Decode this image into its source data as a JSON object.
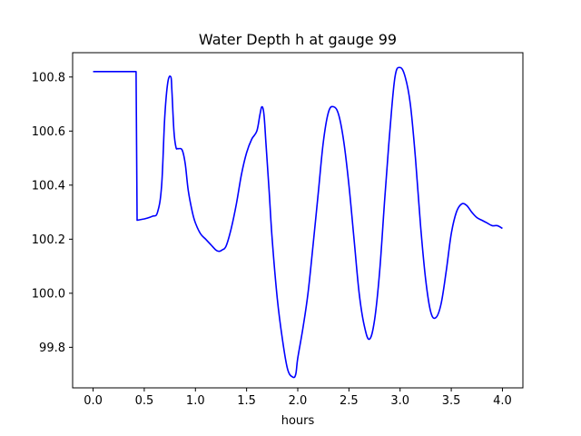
{
  "chart_data": {
    "type": "line",
    "title": "Water Depth h at gauge 99",
    "xlabel": "hours",
    "ylabel": "",
    "xlim": [
      -0.2,
      4.2
    ],
    "ylim": [
      99.65,
      100.89
    ],
    "x_ticks": [
      0.0,
      0.5,
      1.0,
      1.5,
      2.0,
      2.5,
      3.0,
      3.5,
      4.0
    ],
    "x_tick_labels": [
      "0.0",
      "0.5",
      "1.0",
      "1.5",
      "2.0",
      "2.5",
      "3.0",
      "3.5",
      "4.0"
    ],
    "y_ticks": [
      99.8,
      100.0,
      100.2,
      100.4,
      100.6,
      100.8
    ],
    "y_tick_labels": [
      "99.8",
      "100.0",
      "100.2",
      "100.4",
      "100.6",
      "100.8"
    ],
    "grid": false,
    "series": [
      {
        "color": "#0000ff",
        "x": [
          0.0,
          0.2,
          0.42,
          0.425,
          0.43,
          0.5,
          0.58,
          0.63,
          0.67,
          0.7,
          0.73,
          0.76,
          0.77,
          0.79,
          0.81,
          0.83,
          0.87,
          0.9,
          0.93,
          0.97,
          1.0,
          1.05,
          1.1,
          1.15,
          1.2,
          1.23,
          1.26,
          1.3,
          1.35,
          1.4,
          1.45,
          1.5,
          1.55,
          1.6,
          1.63,
          1.65,
          1.67,
          1.69,
          1.72,
          1.75,
          1.8,
          1.85,
          1.9,
          1.95,
          1.98,
          2.0,
          2.05,
          2.1,
          2.15,
          2.2,
          2.25,
          2.3,
          2.35,
          2.4,
          2.45,
          2.5,
          2.55,
          2.6,
          2.65,
          2.7,
          2.75,
          2.8,
          2.85,
          2.9,
          2.95,
          3.0,
          3.05,
          3.1,
          3.15,
          3.2,
          3.25,
          3.3,
          3.35,
          3.4,
          3.45,
          3.5,
          3.55,
          3.6,
          3.65,
          3.7,
          3.75,
          3.8,
          3.85,
          3.9,
          3.95,
          4.0
        ],
        "y": [
          100.82,
          100.82,
          100.82,
          100.55,
          100.27,
          100.275,
          100.285,
          100.3,
          100.4,
          100.65,
          100.78,
          100.8,
          100.75,
          100.6,
          100.54,
          100.535,
          100.53,
          100.48,
          100.38,
          100.3,
          100.26,
          100.22,
          100.2,
          100.18,
          100.16,
          100.155,
          100.16,
          100.175,
          100.24,
          100.33,
          100.44,
          100.52,
          100.57,
          100.6,
          100.66,
          100.69,
          100.66,
          100.55,
          100.38,
          100.2,
          99.98,
          99.83,
          99.72,
          99.69,
          99.7,
          99.76,
          99.87,
          100.0,
          100.18,
          100.37,
          100.56,
          100.67,
          100.69,
          100.66,
          100.56,
          100.4,
          100.2,
          100.0,
          99.88,
          99.83,
          99.9,
          100.08,
          100.35,
          100.6,
          100.8,
          100.835,
          100.8,
          100.7,
          100.5,
          100.25,
          100.05,
          99.93,
          99.91,
          99.96,
          100.08,
          100.22,
          100.3,
          100.33,
          100.325,
          100.3,
          100.28,
          100.27,
          100.26,
          100.25,
          100.25,
          100.24
        ]
      }
    ]
  }
}
